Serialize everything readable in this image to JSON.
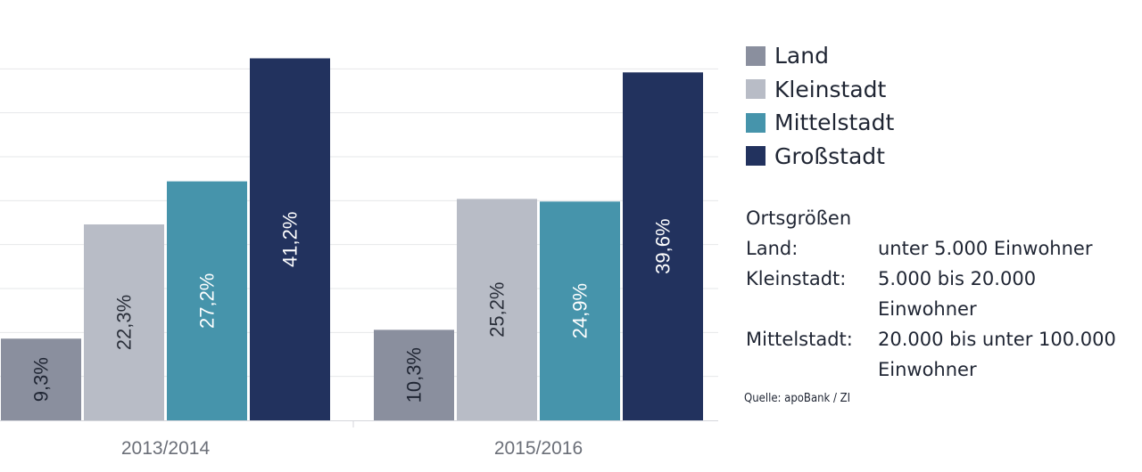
{
  "chart_data": {
    "type": "bar",
    "categories": [
      "2013/2014",
      "2015/2016"
    ],
    "series": [
      {
        "name": "Land",
        "color": "#8a8f9e",
        "values": [
          9.3,
          10.3
        ],
        "labels": [
          "9,3%",
          "10,3%"
        ]
      },
      {
        "name": "Kleinstadt",
        "color": "#b8bcc6",
        "values": [
          22.3,
          25.2
        ],
        "labels": [
          "22,3%",
          "25,2%"
        ]
      },
      {
        "name": "Mittelstadt",
        "color": "#4694ab",
        "values": [
          27.2,
          24.9
        ],
        "labels": [
          "27,2%",
          "24,9%"
        ]
      },
      {
        "name": "Großstadt",
        "color": "#22325e",
        "values": [
          41.2,
          39.6
        ],
        "labels": [
          "41,2%",
          "39,6%"
        ]
      }
    ],
    "ylim": [
      0,
      45
    ],
    "grid": true,
    "legend": "right"
  },
  "notes": {
    "title": "Ortsgrößen",
    "rows": [
      {
        "term": "Land:",
        "lines": [
          "unter 5.000 Einwohner"
        ]
      },
      {
        "term": "Kleinstadt:",
        "lines": [
          "5.000 bis 20.000",
          "Einwohner"
        ]
      },
      {
        "term": "Mittelstadt:",
        "lines": [
          "20.000 bis unter 100.000",
          "Einwohner"
        ]
      }
    ]
  },
  "source": "Quelle: apoBank / ZI"
}
